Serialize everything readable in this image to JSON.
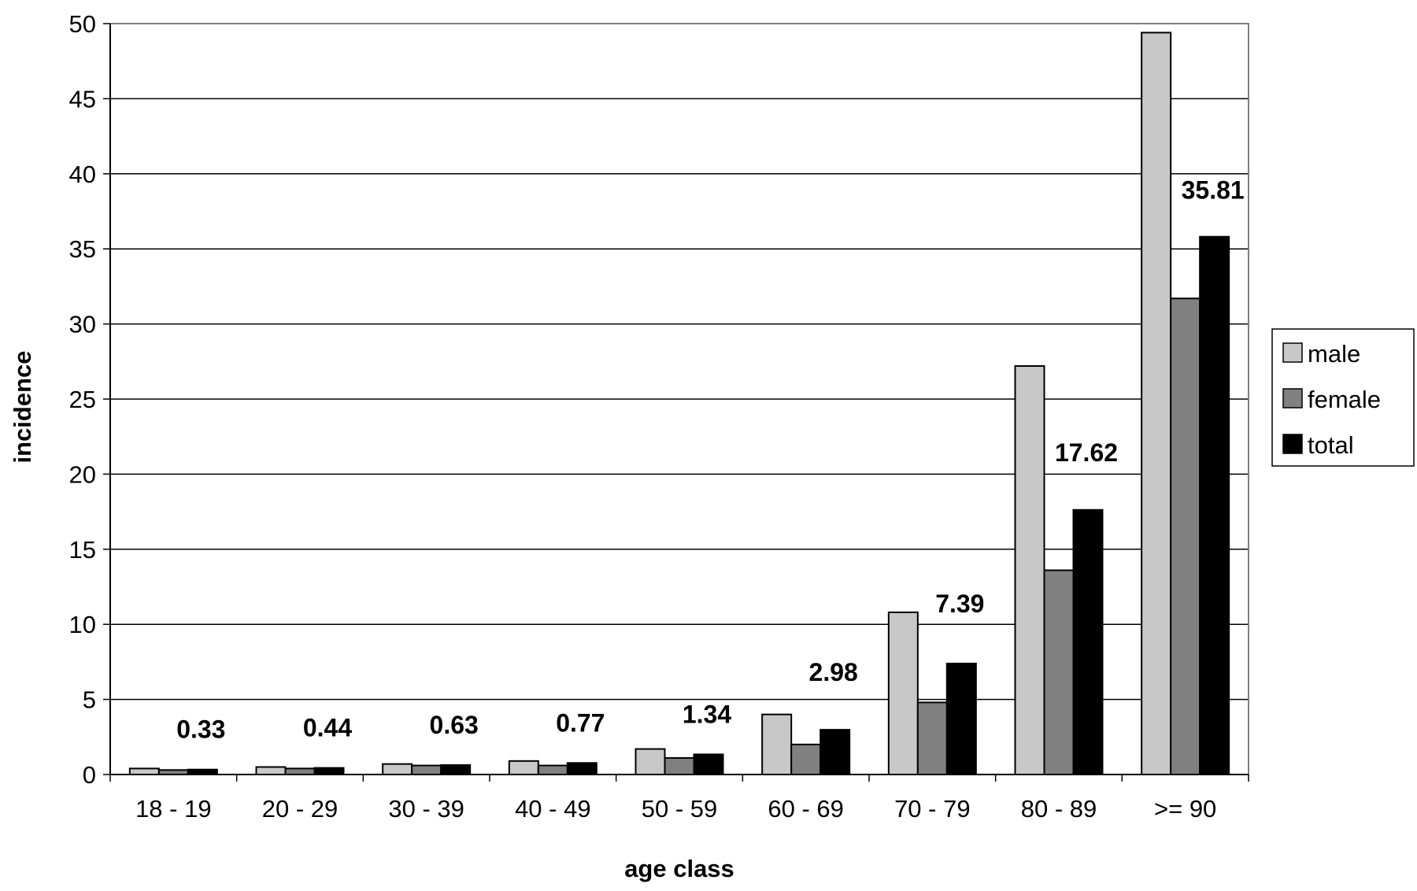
{
  "chart_data": {
    "type": "bar",
    "title": "",
    "xlabel": "age class",
    "ylabel": "incidence",
    "ylim": [
      0,
      50
    ],
    "yticks": [
      0,
      5,
      10,
      15,
      20,
      25,
      30,
      35,
      40,
      45,
      50
    ],
    "grid": "horizontal",
    "legend_position": "right",
    "categories": [
      "18 - 19",
      "20 - 29",
      "30 - 39",
      "40 - 49",
      "50 - 59",
      "60 - 69",
      "70 - 79",
      "80 - 89",
      ">= 90"
    ],
    "series": [
      {
        "name": "male",
        "color": "#c8c8c8",
        "values": [
          0.4,
          0.5,
          0.7,
          0.9,
          1.7,
          4.0,
          10.8,
          27.2,
          49.4
        ]
      },
      {
        "name": "female",
        "color": "#808080",
        "values": [
          0.3,
          0.4,
          0.6,
          0.6,
          1.1,
          2.0,
          4.8,
          13.6,
          31.7
        ]
      },
      {
        "name": "total",
        "color": "#000000",
        "values": [
          0.33,
          0.44,
          0.63,
          0.77,
          1.34,
          2.98,
          7.39,
          17.62,
          35.81
        ]
      }
    ],
    "data_labels": [
      "0.33",
      "0.44",
      "0.63",
      "0.77",
      "1.34",
      "2.98",
      "7.39",
      "17.62",
      "35.81"
    ]
  }
}
